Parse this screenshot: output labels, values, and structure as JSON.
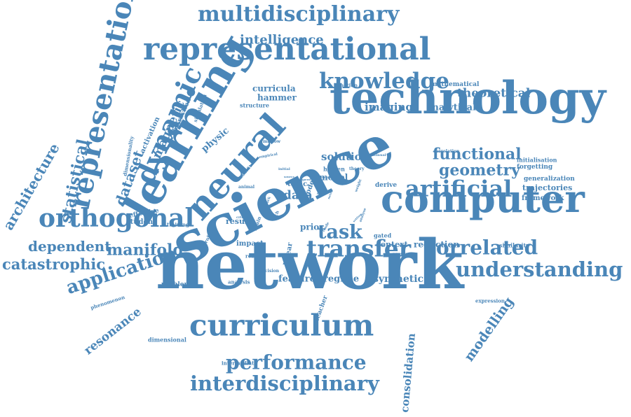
{
  "theme": {
    "word_color": "#4a86b8",
    "background": "#ffffff"
  },
  "words": [
    {
      "id": "network",
      "text": "network",
      "weight": 100
    },
    {
      "id": "science",
      "text": "science",
      "weight": 88
    },
    {
      "id": "learning",
      "text": "learning",
      "weight": 70
    },
    {
      "id": "technology",
      "text": "technology",
      "weight": 72
    },
    {
      "id": "computer",
      "text": "computer",
      "weight": 62
    },
    {
      "id": "neural",
      "text": "neural",
      "weight": 58
    },
    {
      "id": "representational",
      "text": "representational",
      "weight": 50
    },
    {
      "id": "curriculum",
      "text": "curriculum",
      "weight": 48
    },
    {
      "id": "representation",
      "text": "representation",
      "weight": 46
    },
    {
      "id": "dynamic",
      "text": "dynamic",
      "weight": 42
    },
    {
      "id": "orthogonal",
      "text": "orthogonal",
      "weight": 40
    },
    {
      "id": "transfer",
      "text": "transfer",
      "weight": 38
    },
    {
      "id": "artificial",
      "text": "artificial",
      "weight": 37
    },
    {
      "id": "knowledge",
      "text": "knowledge",
      "weight": 35
    },
    {
      "id": "multidisciplinary",
      "text": "multidisciplinary",
      "weight": 34
    },
    {
      "id": "understanding",
      "text": "understanding",
      "weight": 33
    },
    {
      "id": "correlated",
      "text": "correlated",
      "weight": 32
    },
    {
      "id": "interdisciplinary",
      "text": "interdisciplinary",
      "weight": 33
    },
    {
      "id": "performance",
      "text": "performance",
      "weight": 32
    },
    {
      "id": "application",
      "text": "application",
      "weight": 30
    },
    {
      "id": "task",
      "text": "task",
      "weight": 30
    },
    {
      "id": "functional",
      "text": "functional",
      "weight": 26
    },
    {
      "id": "geometry",
      "text": "geometry",
      "weight": 26
    },
    {
      "id": "statistical",
      "text": "statistical",
      "weight": 26
    },
    {
      "id": "manifold",
      "text": "manifold",
      "weight": 25
    },
    {
      "id": "catastrophic",
      "text": "catastrophic",
      "weight": 24
    },
    {
      "id": "dependent",
      "text": "dependent",
      "weight": 24
    },
    {
      "id": "architecture",
      "text": "architecture",
      "weight": 24
    },
    {
      "id": "dataset",
      "text": "dataset",
      "weight": 24
    },
    {
      "id": "magnetic",
      "text": "magnetic",
      "weight": 20
    },
    {
      "id": "modelling",
      "text": "modelling",
      "weight": 22
    },
    {
      "id": "resonance",
      "text": "resonance",
      "weight": 20
    },
    {
      "id": "consolidation",
      "text": "consolidation",
      "weight": 18
    },
    {
      "id": "theoretical",
      "text": "theoretical",
      "weight": 20
    },
    {
      "id": "intelligence",
      "text": "intelligence",
      "weight": 22
    },
    {
      "id": "imaging",
      "text": "imaging",
      "weight": 18
    },
    {
      "id": "analytical",
      "text": "analytical",
      "weight": 15
    },
    {
      "id": "solution",
      "text": "solution",
      "weight": 18
    },
    {
      "id": "data",
      "text": "data",
      "weight": 20
    },
    {
      "id": "synthetic",
      "text": "synthetic",
      "weight": 17
    },
    {
      "id": "feature",
      "text": "feature",
      "weight": 15
    },
    {
      "id": "regime",
      "text": "regime",
      "weight": 15
    },
    {
      "id": "context",
      "text": "context",
      "weight": 13
    },
    {
      "id": "reduction",
      "text": "reduction",
      "weight": 14
    },
    {
      "id": "curricula",
      "text": "curricula",
      "weight": 14
    },
    {
      "id": "hammer",
      "text": "hammer",
      "weight": 14
    },
    {
      "id": "physic",
      "text": "physic",
      "weight": 15
    },
    {
      "id": "student",
      "text": "student",
      "weight": 12
    },
    {
      "id": "model",
      "text": "model",
      "weight": 14
    },
    {
      "id": "topic",
      "text": "topic",
      "weight": 12
    },
    {
      "id": "prior",
      "text": "prior",
      "weight": 14
    },
    {
      "id": "result",
      "text": "result",
      "weight": 13
    },
    {
      "id": "impact",
      "text": "impact",
      "weight": 12
    },
    {
      "id": "derive",
      "text": "derive",
      "weight": 11
    },
    {
      "id": "mathematical",
      "text": "mathematical",
      "weight": 10
    },
    {
      "id": "function",
      "text": "function",
      "weight": 8
    },
    {
      "id": "structure",
      "text": "structure",
      "weight": 10
    },
    {
      "id": "activation",
      "text": "activation",
      "weight": 12
    },
    {
      "id": "abstraction",
      "text": "abstraction",
      "weight": 11
    },
    {
      "id": "dimensionality",
      "text": "dimensionality",
      "weight": 9
    },
    {
      "id": "simulation",
      "text": "simulation",
      "weight": 8
    },
    {
      "id": "problem",
      "text": "problem",
      "weight": 11
    },
    {
      "id": "phenomenon",
      "text": "phenomenon",
      "weight": 9
    },
    {
      "id": "effective",
      "text": "effective",
      "weight": 10
    },
    {
      "id": "training",
      "text": "training",
      "weight": 8
    },
    {
      "id": "probing",
      "text": "probing",
      "weight": 8
    },
    {
      "id": "analysis",
      "text": "analysis",
      "weight": 8
    },
    {
      "id": "dimensional",
      "text": "dimensional",
      "weight": 9
    },
    {
      "id": "intermediate",
      "text": "intermediate",
      "weight": 8
    },
    {
      "id": "hidden",
      "text": "hidden",
      "weight": 9
    },
    {
      "id": "theory",
      "text": "theory",
      "weight": 7
    },
    {
      "id": "initial",
      "text": "initial",
      "weight": 6
    },
    {
      "id": "maslow",
      "text": "maslow",
      "weight": 7
    },
    {
      "id": "empirical",
      "text": "empirical",
      "weight": 6
    },
    {
      "id": "benefit",
      "text": "benefit",
      "weight": 7
    },
    {
      "id": "animal",
      "text": "animal",
      "weight": 7
    },
    {
      "id": "critical",
      "text": "critical",
      "weight": 6
    },
    {
      "id": "work",
      "text": "work",
      "weight": 6
    },
    {
      "id": "rich",
      "text": "rich",
      "weight": 7
    },
    {
      "id": "brain",
      "text": "brain",
      "weight": 8
    },
    {
      "id": "robust",
      "text": "robust",
      "weight": 8
    },
    {
      "id": "decision",
      "text": "decision",
      "weight": 7
    },
    {
      "id": "linear",
      "text": "linear",
      "weight": 12
    },
    {
      "id": "teacher",
      "text": "teacher",
      "weight": 10
    },
    {
      "id": "gated",
      "text": "gated",
      "weight": 9
    },
    {
      "id": "presence",
      "text": "presence",
      "weight": 7
    },
    {
      "id": "similarity",
      "text": "similarity",
      "weight": 9
    },
    {
      "id": "expression",
      "text": "expression",
      "weight": 8
    },
    {
      "id": "initialisation",
      "text": "initialisation",
      "weight": 9
    },
    {
      "id": "forgetting",
      "text": "forgetting",
      "weight": 10
    },
    {
      "id": "generalization",
      "text": "generalization",
      "weight": 10
    },
    {
      "id": "trajectories",
      "text": "trajectories",
      "weight": 12
    },
    {
      "id": "framework",
      "text": "framework",
      "weight": 11
    },
    {
      "id": "correlation",
      "text": "correlation",
      "weight": 7
    },
    {
      "id": "continual",
      "text": "continual",
      "weight": 6
    },
    {
      "id": "weight",
      "text": "weight",
      "weight": 6
    },
    {
      "id": "source",
      "text": "source",
      "weight": 5
    },
    {
      "id": "speed",
      "text": "speed",
      "weight": 5
    },
    {
      "id": "race",
      "text": "race",
      "weight": 6
    },
    {
      "id": "node",
      "text": "node",
      "weight": 11
    },
    {
      "id": "setting",
      "text": "setting",
      "weight": 5
    },
    {
      "id": "analyse",
      "text": "analyse",
      "weight": 6
    },
    {
      "id": "trade",
      "text": "trade",
      "weight": 6
    },
    {
      "id": "target",
      "text": "target",
      "weight": 5
    },
    {
      "id": "nature",
      "text": "nature",
      "weight": 5
    },
    {
      "id": "reveal",
      "text": "reveal",
      "weight": 5
    }
  ]
}
